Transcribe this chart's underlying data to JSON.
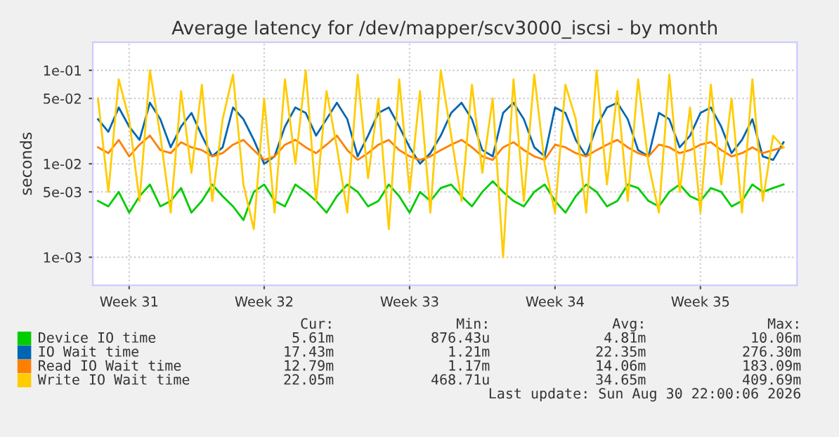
{
  "chart_data": {
    "type": "line",
    "title": "Average latency for /dev/mapper/scv3000_iscsi - by month",
    "ylabel": "seconds",
    "log": "y",
    "grid": true,
    "legend": "bottom",
    "marker": "none",
    "line_style": "solid",
    "ylim": [
      0.0005,
      0.2
    ],
    "yticks": [
      {
        "value": 0.001,
        "label": "1e-03"
      },
      {
        "value": 0.005,
        "label": "5e-03"
      },
      {
        "value": 0.01,
        "label": "1e-02"
      },
      {
        "value": 0.05,
        "label": "5e-02"
      },
      {
        "value": 0.1,
        "label": "1e-01"
      }
    ],
    "categories": [
      null,
      null,
      null,
      "Week 31",
      null,
      null,
      null,
      null,
      null,
      null,
      null,
      null,
      null,
      null,
      null,
      null,
      "Week 32",
      null,
      null,
      null,
      null,
      null,
      null,
      null,
      null,
      null,
      null,
      null,
      null,
      null,
      "Week 33",
      null,
      null,
      null,
      null,
      null,
      null,
      null,
      null,
      null,
      null,
      null,
      null,
      null,
      "Week 34",
      null,
      null,
      null,
      null,
      null,
      null,
      null,
      null,
      null,
      null,
      null,
      null,
      null,
      "Week 35",
      null,
      null,
      null,
      null,
      null,
      null,
      null,
      null
    ],
    "series": [
      {
        "name": "Device IO time",
        "color": "#00cc00",
        "values": [
          0.004,
          0.0035,
          0.005,
          0.003,
          0.0045,
          0.006,
          0.0035,
          0.004,
          0.0055,
          0.003,
          0.004,
          0.006,
          0.0045,
          0.0035,
          0.0025,
          0.005,
          0.006,
          0.004,
          0.0035,
          0.006,
          0.005,
          0.004,
          0.003,
          0.0045,
          0.006,
          0.005,
          0.0035,
          0.004,
          0.006,
          0.0045,
          0.003,
          0.005,
          0.004,
          0.0055,
          0.006,
          0.0045,
          0.0035,
          0.005,
          0.0065,
          0.005,
          0.004,
          0.0035,
          0.005,
          0.006,
          0.004,
          0.003,
          0.0045,
          0.006,
          0.005,
          0.0035,
          0.004,
          0.006,
          0.0055,
          0.004,
          0.0035,
          0.005,
          0.006,
          0.0045,
          0.004,
          0.0055,
          0.005,
          0.0035,
          0.004,
          0.006,
          0.005,
          0.0055,
          0.006
        ]
      },
      {
        "name": "IO Wait time",
        "color": "#0066b3",
        "values": [
          0.03,
          0.022,
          0.04,
          0.025,
          0.018,
          0.045,
          0.03,
          0.015,
          0.025,
          0.035,
          0.02,
          0.012,
          0.015,
          0.04,
          0.03,
          0.018,
          0.01,
          0.012,
          0.025,
          0.04,
          0.035,
          0.02,
          0.03,
          0.045,
          0.03,
          0.012,
          0.02,
          0.035,
          0.04,
          0.025,
          0.015,
          0.01,
          0.013,
          0.02,
          0.035,
          0.045,
          0.03,
          0.014,
          0.012,
          0.035,
          0.045,
          0.03,
          0.015,
          0.012,
          0.04,
          0.035,
          0.018,
          0.012,
          0.025,
          0.04,
          0.045,
          0.03,
          0.014,
          0.012,
          0.035,
          0.03,
          0.015,
          0.02,
          0.035,
          0.04,
          0.025,
          0.013,
          0.018,
          0.03,
          0.012,
          0.011,
          0.017
        ]
      },
      {
        "name": "Read IO Wait time",
        "color": "#ff8000",
        "values": [
          0.015,
          0.013,
          0.018,
          0.012,
          0.016,
          0.02,
          0.014,
          0.013,
          0.017,
          0.015,
          0.014,
          0.012,
          0.013,
          0.016,
          0.018,
          0.014,
          0.011,
          0.012,
          0.016,
          0.018,
          0.015,
          0.013,
          0.016,
          0.02,
          0.014,
          0.011,
          0.013,
          0.016,
          0.018,
          0.014,
          0.012,
          0.011,
          0.012,
          0.014,
          0.016,
          0.018,
          0.015,
          0.012,
          0.011,
          0.015,
          0.017,
          0.014,
          0.012,
          0.011,
          0.016,
          0.015,
          0.013,
          0.012,
          0.014,
          0.016,
          0.018,
          0.015,
          0.013,
          0.012,
          0.016,
          0.015,
          0.013,
          0.014,
          0.016,
          0.017,
          0.014,
          0.012,
          0.013,
          0.015,
          0.013,
          0.014,
          0.015
        ]
      },
      {
        "name": "Write IO Wait time",
        "color": "#ffcc00",
        "values": [
          0.05,
          0.005,
          0.08,
          0.03,
          0.004,
          0.1,
          0.02,
          0.003,
          0.06,
          0.008,
          0.07,
          0.004,
          0.03,
          0.09,
          0.006,
          0.002,
          0.05,
          0.003,
          0.08,
          0.01,
          0.1,
          0.004,
          0.06,
          0.015,
          0.003,
          0.09,
          0.007,
          0.05,
          0.002,
          0.08,
          0.005,
          0.06,
          0.003,
          0.1,
          0.02,
          0.004,
          0.07,
          0.008,
          0.05,
          0.001,
          0.08,
          0.004,
          0.09,
          0.01,
          0.003,
          0.07,
          0.03,
          0.003,
          0.1,
          0.006,
          0.06,
          0.004,
          0.08,
          0.01,
          0.003,
          0.09,
          0.005,
          0.04,
          0.003,
          0.07,
          0.006,
          0.05,
          0.003,
          0.08,
          0.004,
          0.02,
          0.015
        ]
      }
    ],
    "annotations": [
      "Cur:",
      "Min:",
      "Avg:",
      "Max:",
      "5.61m",
      "876.43u",
      "4.81m",
      "10.06m",
      "17.43m",
      "1.21m",
      "22.35m",
      "276.30m",
      "12.79m",
      "1.17m",
      "14.06m",
      "183.09m",
      "22.05m",
      "468.71u",
      "34.65m",
      "409.69m",
      "Last update: Sun Aug 30 22:00:06 2026"
    ]
  }
}
